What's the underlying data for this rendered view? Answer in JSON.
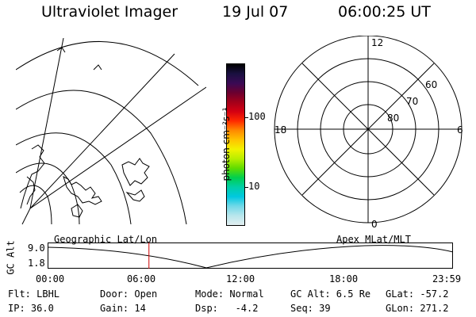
{
  "header": {
    "title": "Ultraviolet Imager",
    "date": "19 Jul 07",
    "time": "06:00:25 UT"
  },
  "colorbar": {
    "unit_label": "photon cm⁻²s⁻¹",
    "ticks": [
      "100",
      "10"
    ],
    "colors": [
      "#000000",
      "#1a1040",
      "#3a0a55",
      "#6a0030",
      "#a3001a",
      "#d40012",
      "#ff2a00",
      "#ff8a00",
      "#ffc400",
      "#f2f200",
      "#b8ee00",
      "#5fdc00",
      "#00cf50",
      "#00cfa8",
      "#00c8e0",
      "#70d8e8",
      "#b8e6ec",
      "#e2eef0"
    ]
  },
  "polar": {
    "mlt_labels": {
      "top": "12",
      "left": "18",
      "right": "6",
      "bottom": "0"
    },
    "lat_labels": [
      "60",
      "70",
      "80"
    ]
  },
  "orbit": {
    "ylabel": "GC Alt",
    "y_ticks": [
      "9.0",
      "1.8"
    ],
    "left_note": "Geographic Lat/Lon",
    "right_note": "Apex  MLat/MLT",
    "x_ticks": [
      "00:00",
      "06:00",
      "12:00",
      "18:00",
      "23:59"
    ],
    "current_hour": 6.0,
    "accent_color": "#cc0000"
  },
  "status": {
    "rows": [
      [
        "Flt: LBHL",
        "Door: Open",
        "Mode: Normal",
        "GC Alt: 6.5 Re",
        "GLat: -57.2"
      ],
      [
        "IP: 36.0",
        "Gain: 14",
        "Dsp:   -4.2",
        "Seq: 39",
        "GLon: 271.2"
      ]
    ]
  }
}
